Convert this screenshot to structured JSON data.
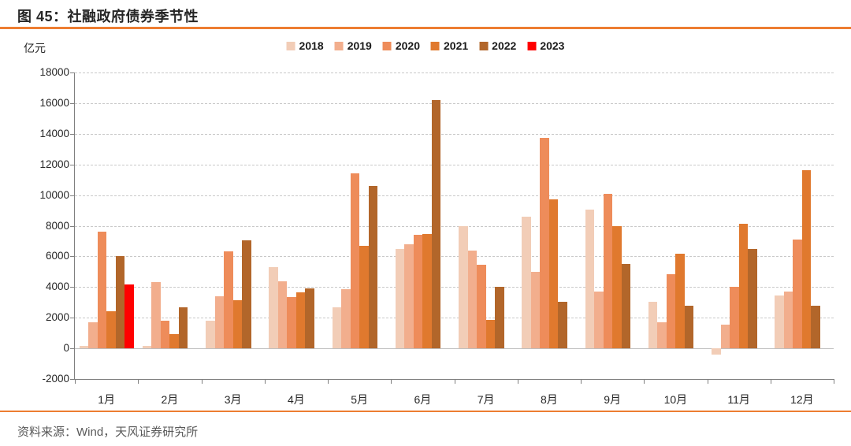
{
  "figure": {
    "title": "图 45：社融政府债券季节性",
    "unit_label": "亿元",
    "source": "资料来源：Wind，天风证券研究所"
  },
  "colors": {
    "accent_rule": "#ED7D31",
    "grid": "#C9C9C9",
    "zero_line": "#BFBFBF",
    "axis": "#7F7F7F",
    "title_text": "#262626",
    "source_text": "#595959"
  },
  "chart_data": {
    "type": "bar",
    "title": "图 45：社融政府债券季节性",
    "ylabel": "亿元",
    "xlabel": "",
    "categories": [
      "1月",
      "2月",
      "3月",
      "4月",
      "5月",
      "6月",
      "7月",
      "8月",
      "9月",
      "10月",
      "11月",
      "12月"
    ],
    "ylim": [
      -2000,
      18000
    ],
    "y_tick_step": 2000,
    "y_ticks": [
      18000,
      16000,
      14000,
      12000,
      10000,
      8000,
      6000,
      4000,
      2000,
      0,
      -2000
    ],
    "grid": "horizontal-dashed",
    "legend_position": "top-center",
    "series": [
      {
        "name": "2018",
        "color": "#F2CDB7",
        "values": [
          150,
          150,
          1800,
          5300,
          2700,
          6500,
          8000,
          8600,
          9050,
          3050,
          -400,
          3450
        ]
      },
      {
        "name": "2019",
        "color": "#F2AE8D",
        "values": [
          1700,
          4300,
          3400,
          4400,
          3850,
          6800,
          6400,
          5000,
          3700,
          1700,
          1550,
          3700
        ]
      },
      {
        "name": "2020",
        "color": "#EE8C5A",
        "values": [
          7600,
          1800,
          6350,
          3350,
          11400,
          7400,
          5450,
          13750,
          10100,
          4850,
          4000,
          7100
        ]
      },
      {
        "name": "2021",
        "color": "#E0792E",
        "values": [
          2400,
          950,
          3150,
          3650,
          6700,
          7450,
          1850,
          9700,
          8000,
          6150,
          8150,
          11650
        ]
      },
      {
        "name": "2022",
        "color": "#B2662A",
        "values": [
          6000,
          2700,
          7050,
          3900,
          10600,
          16200,
          4000,
          3050,
          5500,
          2800,
          6500,
          2800
        ]
      },
      {
        "name": "2023",
        "color": "#FF0000",
        "values": [
          4150,
          null,
          null,
          null,
          null,
          null,
          null,
          null,
          null,
          null,
          null,
          null
        ]
      }
    ]
  }
}
